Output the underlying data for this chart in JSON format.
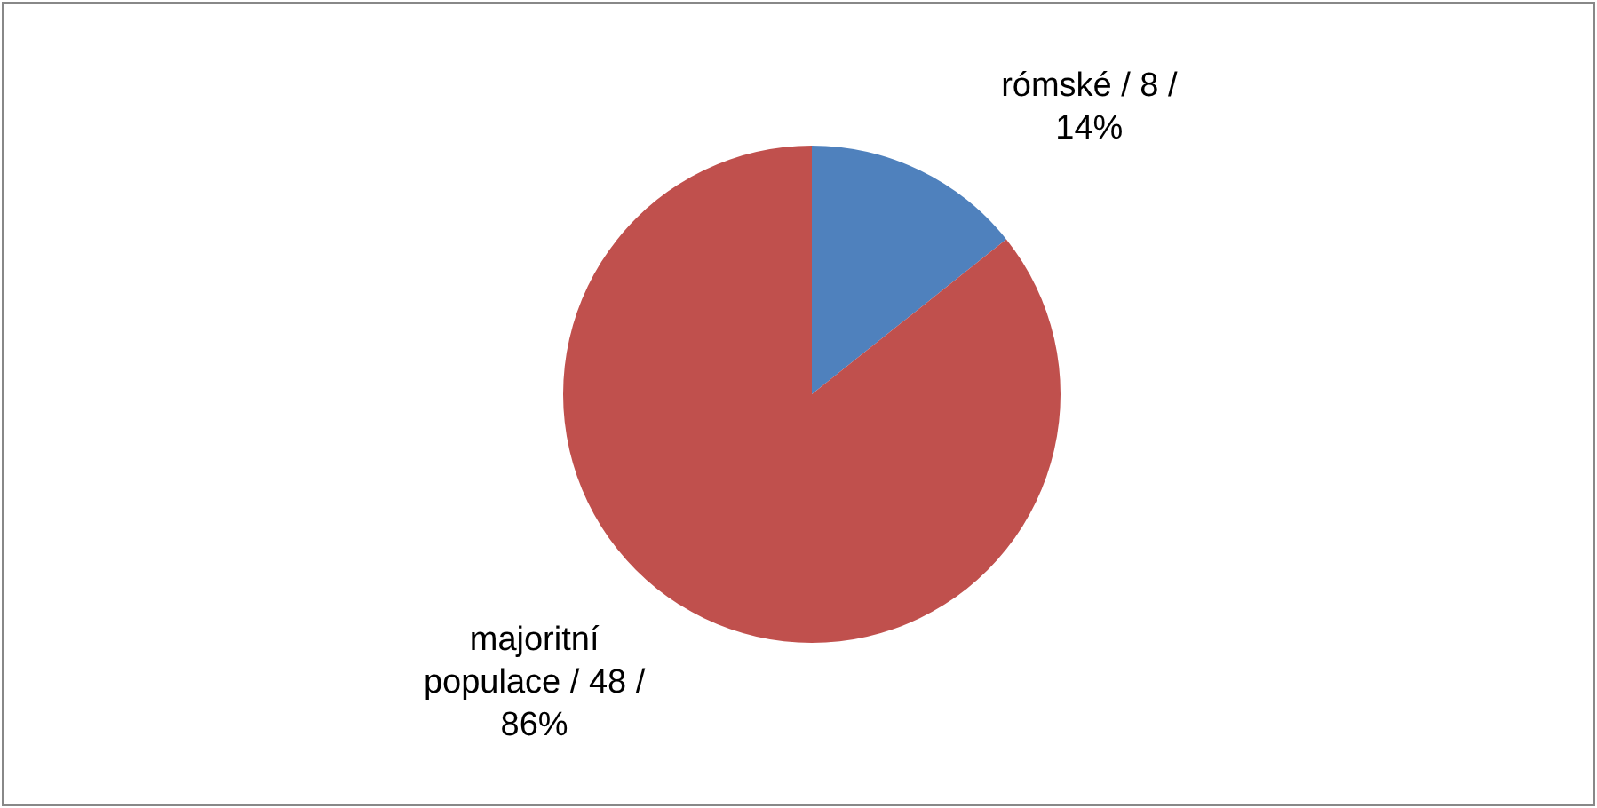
{
  "chart_data": {
    "type": "pie",
    "categories": [
      "rómské",
      "majoritní populace"
    ],
    "values": [
      8,
      48
    ],
    "colors": [
      "#4f81bd",
      "#c0504d"
    ],
    "value_labels": [
      "/ 8 / 14%",
      "/ 48 / 86%"
    ]
  }
}
